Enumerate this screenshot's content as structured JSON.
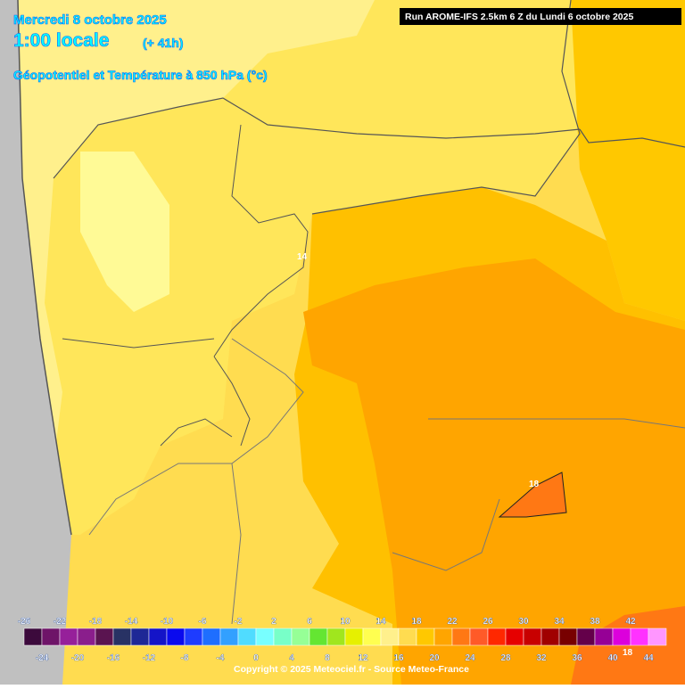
{
  "header": {
    "date": "Mercredi 8 octobre 2025",
    "time": "1:00 locale",
    "offset": "(+ 41h)",
    "subtitle": "Géopotentiel et Température à 850 hPa (°c)",
    "run": "Run AROME-IFS 2.5km 6 Z du Lundi 6 octobre 2025"
  },
  "contour_labels": [
    "14",
    "18",
    "18"
  ],
  "colorbar": {
    "ticks": [
      -26,
      -24,
      -22,
      -20,
      -18,
      -16,
      -14,
      -12,
      -10,
      -8,
      -6,
      -4,
      -2,
      0,
      2,
      4,
      6,
      8,
      10,
      12,
      14,
      16,
      18,
      20,
      22,
      24,
      26,
      28,
      30,
      32,
      34,
      36,
      38,
      40,
      42,
      44
    ],
    "colors": [
      "#3c0a3c",
      "#6e1468",
      "#96209a",
      "#8a1e8c",
      "#5a1450",
      "#283264",
      "#1e2896",
      "#1414c8",
      "#0a0aee",
      "#1e3cff",
      "#1e6eff",
      "#32a0ff",
      "#50dcff",
      "#78ffff",
      "#78ffc8",
      "#96ff96",
      "#64e632",
      "#a0e61e",
      "#e6f000",
      "#ffff50",
      "#fff08c",
      "#ffdc50",
      "#ffc800",
      "#ffa500",
      "#ff7814",
      "#ff5a28",
      "#ff2800",
      "#e60000",
      "#c80000",
      "#a00000",
      "#780000",
      "#64004a",
      "#960096",
      "#dc00dc",
      "#ff32ff",
      "#ff96ff"
    ]
  },
  "copyright": "Copyright © 2025 Meteociel.fr - Source Meteo-France"
}
